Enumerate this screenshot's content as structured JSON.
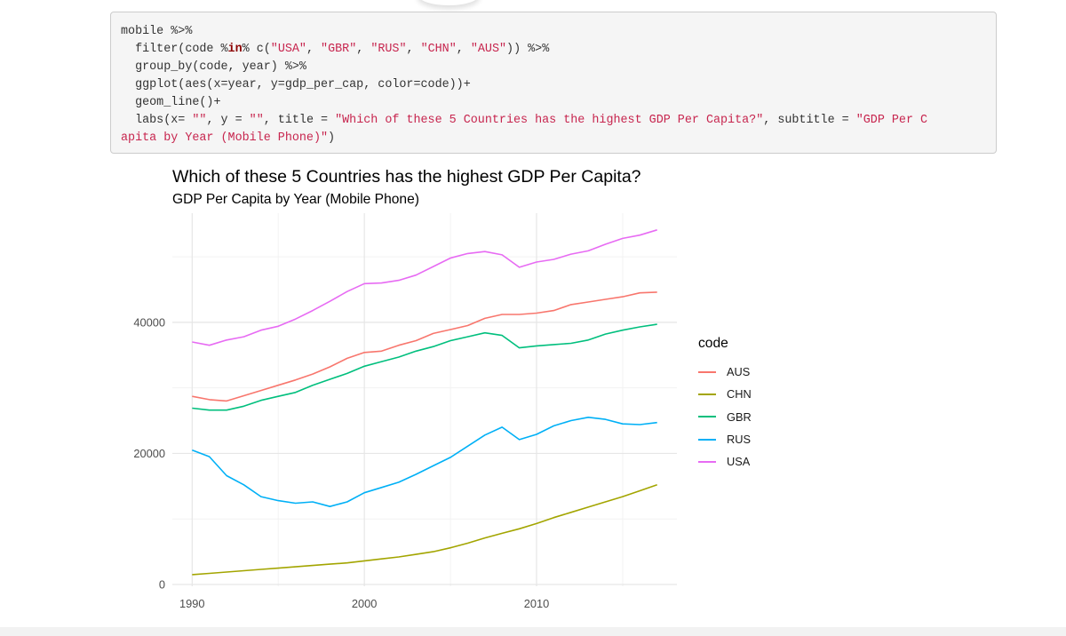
{
  "code": {
    "lines": [
      [
        {
          "t": "mobile %>%"
        }
      ],
      [
        {
          "t": "  filter(code %"
        },
        {
          "t": "in",
          "k": "kw"
        },
        {
          "t": "% c("
        },
        {
          "t": "\"USA\"",
          "k": "str"
        },
        {
          "t": ", "
        },
        {
          "t": "\"GBR\"",
          "k": "str"
        },
        {
          "t": ", "
        },
        {
          "t": "\"RUS\"",
          "k": "str"
        },
        {
          "t": ", "
        },
        {
          "t": "\"CHN\"",
          "k": "str"
        },
        {
          "t": ", "
        },
        {
          "t": "\"AUS\"",
          "k": "str"
        },
        {
          "t": ")) %>%"
        }
      ],
      [
        {
          "t": "  group_by(code, year) %>%"
        }
      ],
      [
        {
          "t": "  ggplot(aes(x=year, y=gdp_per_cap, color=code))+"
        }
      ],
      [
        {
          "t": "  geom_line()+"
        }
      ],
      [
        {
          "t": "  labs(x= "
        },
        {
          "t": "\"\"",
          "k": "str"
        },
        {
          "t": ", y = "
        },
        {
          "t": "\"\"",
          "k": "str"
        },
        {
          "t": ", title = "
        },
        {
          "t": "\"Which of these 5 Countries has the highest GDP Per Capita?\"",
          "k": "str"
        },
        {
          "t": ", subtitle = "
        },
        {
          "t": "\"GDP Per C",
          "k": "str"
        }
      ],
      [
        {
          "t": "apita by Year (Mobile Phone)\"",
          "k": "str"
        },
        {
          "t": ")"
        }
      ]
    ]
  },
  "chart_data": {
    "type": "line",
    "title": "Which of these 5 Countries has the highest GDP Per Capita?",
    "subtitle": "GDP Per Capita by Year (Mobile Phone)",
    "xlabel": "",
    "ylabel": "",
    "xlim": [
      1990,
      2017
    ],
    "ylim": [
      0,
      54000
    ],
    "x_ticks": [
      1990,
      2000,
      2010
    ],
    "y_ticks": [
      0,
      20000,
      40000
    ],
    "grid": true,
    "legend_position": "right",
    "legend_title": "code",
    "x": [
      1990,
      1991,
      1992,
      1993,
      1994,
      1995,
      1996,
      1997,
      1998,
      1999,
      2000,
      2001,
      2002,
      2003,
      2004,
      2005,
      2006,
      2007,
      2008,
      2009,
      2010,
      2011,
      2012,
      2013,
      2014,
      2015,
      2016,
      2017
    ],
    "series": [
      {
        "name": "AUS",
        "color": "#F8766D",
        "values": [
          28700,
          28200,
          28000,
          28800,
          29600,
          30400,
          31200,
          32100,
          33200,
          34500,
          35400,
          35600,
          36500,
          37200,
          38300,
          38900,
          39500,
          40600,
          41200,
          41200,
          41400,
          41800,
          42700,
          43100,
          43500,
          43900,
          44500,
          44600
        ]
      },
      {
        "name": "CHN",
        "color": "#A3A500",
        "values": [
          1500,
          1700,
          1900,
          2100,
          2300,
          2500,
          2700,
          2900,
          3100,
          3300,
          3600,
          3900,
          4200,
          4600,
          5000,
          5600,
          6300,
          7100,
          7800,
          8500,
          9300,
          10200,
          11000,
          11800,
          12600,
          13400,
          14300,
          15200
        ]
      },
      {
        "name": "GBR",
        "color": "#00BF7D",
        "values": [
          26900,
          26600,
          26600,
          27200,
          28100,
          28700,
          29300,
          30400,
          31300,
          32200,
          33300,
          34000,
          34700,
          35600,
          36300,
          37200,
          37800,
          38400,
          38000,
          36100,
          36400,
          36600,
          36800,
          37300,
          38200,
          38800,
          39300,
          39700
        ]
      },
      {
        "name": "RUS",
        "color": "#00B0F6",
        "values": [
          20500,
          19500,
          16600,
          15200,
          13400,
          12800,
          12400,
          12600,
          11900,
          12600,
          14000,
          14800,
          15600,
          16800,
          18100,
          19400,
          21100,
          22800,
          24000,
          22100,
          22900,
          24200,
          25000,
          25500,
          25200,
          24500,
          24400,
          24700
        ]
      },
      {
        "name": "USA",
        "color": "#E76BF3",
        "values": [
          37000,
          36500,
          37300,
          37800,
          38800,
          39400,
          40500,
          41800,
          43200,
          44700,
          45900,
          46000,
          46400,
          47200,
          48500,
          49800,
          50500,
          50800,
          50300,
          48400,
          49200,
          49600,
          50400,
          50900,
          51900,
          52800,
          53300,
          54100
        ]
      }
    ]
  }
}
